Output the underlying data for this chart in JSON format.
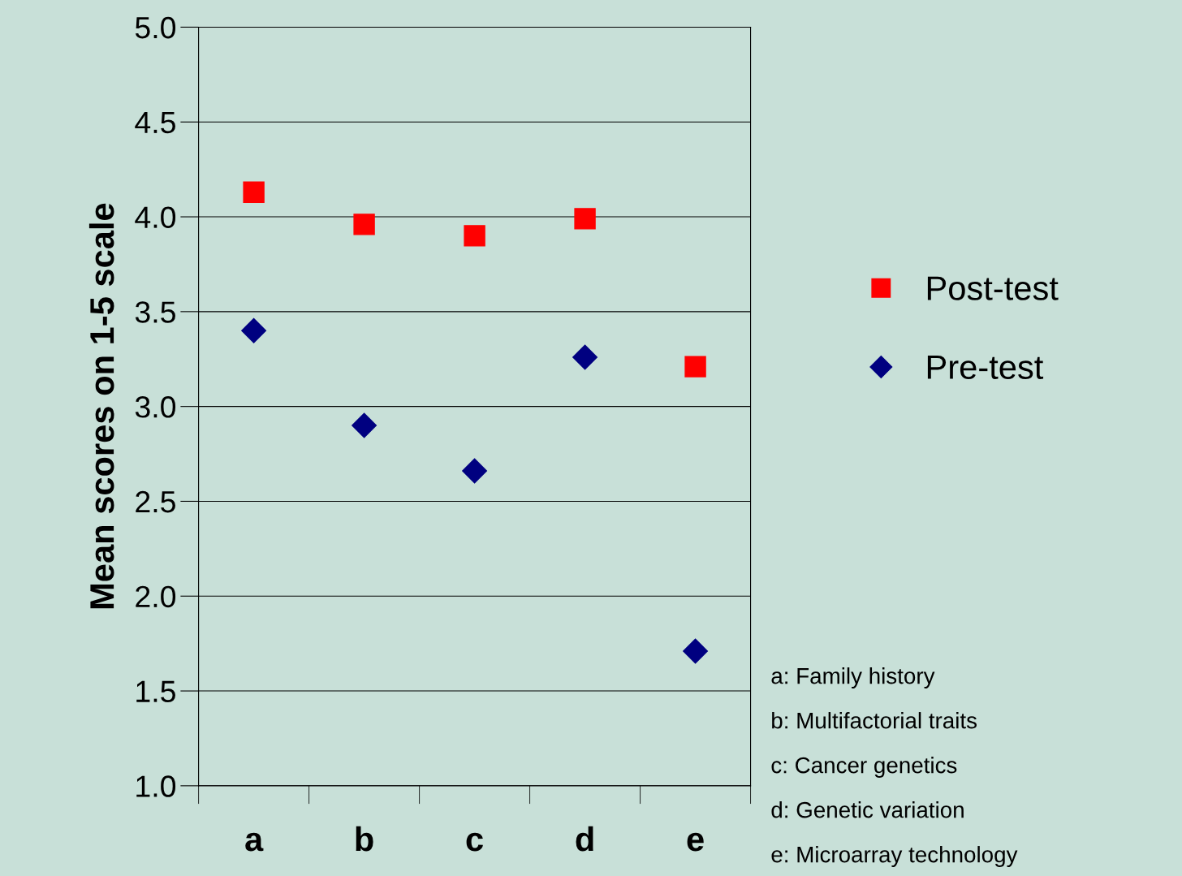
{
  "chart_data": {
    "type": "scatter",
    "ylabel": "Mean scores on 1-5 scale",
    "categories": [
      "a",
      "b",
      "c",
      "d",
      "e"
    ],
    "series": [
      {
        "name": "Post-test",
        "color": "#ff0000",
        "marker": "square",
        "values": [
          4.13,
          3.96,
          3.9,
          3.99,
          3.21
        ]
      },
      {
        "name": "Pre-test",
        "color": "#000080",
        "marker": "diamond",
        "values": [
          3.4,
          2.9,
          2.66,
          3.26,
          1.71
        ]
      }
    ],
    "ylim": [
      1.0,
      5.0
    ],
    "yticks": [
      {
        "value": 1.0,
        "label": "1.0"
      },
      {
        "value": 1.5,
        "label": "1.5"
      },
      {
        "value": 2.0,
        "label": "2.0"
      },
      {
        "value": 2.5,
        "label": "2.5"
      },
      {
        "value": 3.0,
        "label": "3.0"
      },
      {
        "value": 3.5,
        "label": "3.5"
      },
      {
        "value": 4.0,
        "label": "4.0"
      },
      {
        "value": 4.5,
        "label": "4.5"
      },
      {
        "value": 5.0,
        "label": "5.0"
      }
    ],
    "grid": "y",
    "legend": "right",
    "annotations": [
      "a: Family history",
      "b: Multifactorial traits",
      "c: Cancer genetics",
      "d: Genetic variation",
      "e: Microarray technology"
    ]
  }
}
